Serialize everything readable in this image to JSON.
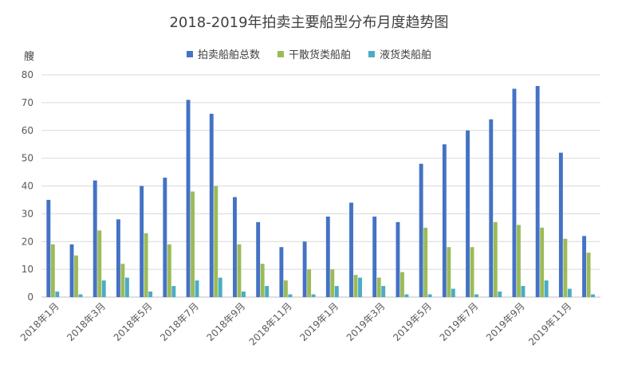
{
  "chart_data": {
    "type": "bar",
    "title": "2018-2019年拍卖主要船型分布月度趋势图",
    "ylabel": "艘",
    "xlabel": "",
    "ylim": [
      0,
      80
    ],
    "yticks": [
      0,
      10,
      20,
      30,
      40,
      50,
      60,
      70,
      80
    ],
    "grid": true,
    "legend_position": "top",
    "categories": [
      "2018年1月",
      "2018年2月",
      "2018年3月",
      "2018年4月",
      "2018年5月",
      "2018年6月",
      "2018年7月",
      "2018年8月",
      "2018年9月",
      "2018年10月",
      "2018年11月",
      "2018年12月",
      "2019年1月",
      "2019年2月",
      "2019年3月",
      "2019年4月",
      "2019年5月",
      "2019年6月",
      "2019年7月",
      "2019年8月",
      "2019年9月",
      "2019年10月",
      "2019年11月",
      "2019年12月"
    ],
    "shown_tick_labels": [
      "2018年1月",
      "2018年3月",
      "2018年5月",
      "2018年7月",
      "2018年9月",
      "2018年11月",
      "2019年1月",
      "2019年3月",
      "2019年5月",
      "2019年7月",
      "2019年9月",
      "2019年11月"
    ],
    "series": [
      {
        "name": "拍卖船舶总数",
        "color": "#4472C4",
        "values": [
          35,
          19,
          42,
          28,
          40,
          43,
          71,
          66,
          36,
          27,
          18,
          20,
          29,
          34,
          29,
          27,
          48,
          55,
          60,
          64,
          75,
          76,
          52,
          22
        ]
      },
      {
        "name": "干散货类船舶",
        "color": "#9BBB59",
        "values": [
          19,
          15,
          24,
          12,
          23,
          19,
          38,
          40,
          19,
          12,
          6,
          10,
          10,
          8,
          7,
          9,
          25,
          18,
          18,
          27,
          26,
          25,
          21,
          16
        ]
      },
      {
        "name": "液货类船舶",
        "color": "#4BACC6",
        "values": [
          2,
          1,
          6,
          7,
          2,
          4,
          6,
          7,
          2,
          4,
          1,
          1,
          4,
          7,
          4,
          1,
          1,
          3,
          1,
          2,
          4,
          6,
          3,
          1
        ]
      }
    ]
  }
}
